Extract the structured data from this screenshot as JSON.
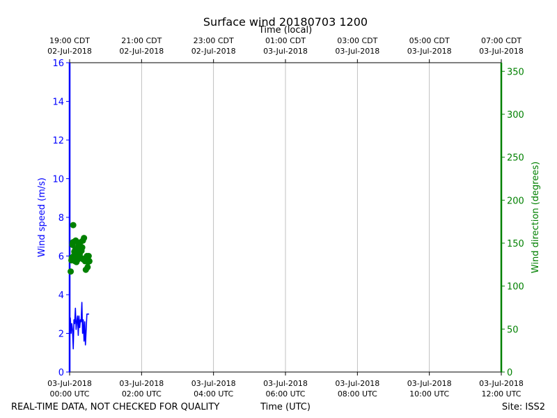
{
  "chart_data": {
    "type": "line",
    "title": "Surface wind 20180703 1200",
    "top_xlabel": "Time (local)",
    "xlabel": "Time (UTC)",
    "ylabel_left": "Wind speed (m/s)",
    "ylabel_right": "Wind direction (degrees)",
    "footer_left": "REAL-TIME DATA, NOT CHECKED FOR QUALITY",
    "footer_right": "Site: ISS2",
    "x_range_hours_utc": [
      0,
      12
    ],
    "ylim_left": [
      0,
      16
    ],
    "ylim_right": [
      0,
      360
    ],
    "grid_x": true,
    "left_ticks": [
      0,
      2,
      4,
      6,
      8,
      10,
      12,
      14,
      16
    ],
    "right_ticks": [
      0,
      50,
      100,
      150,
      200,
      250,
      300,
      350
    ],
    "bottom_ticks": [
      {
        "h": 0,
        "time": "00:00 UTC",
        "date": "03-Jul-2018"
      },
      {
        "h": 2,
        "time": "02:00 UTC",
        "date": "03-Jul-2018"
      },
      {
        "h": 4,
        "time": "04:00 UTC",
        "date": "03-Jul-2018"
      },
      {
        "h": 6,
        "time": "06:00 UTC",
        "date": "03-Jul-2018"
      },
      {
        "h": 8,
        "time": "08:00 UTC",
        "date": "03-Jul-2018"
      },
      {
        "h": 10,
        "time": "10:00 UTC",
        "date": "03-Jul-2018"
      },
      {
        "h": 12,
        "time": "12:00 UTC",
        "date": "03-Jul-2018"
      }
    ],
    "top_ticks": [
      {
        "h": 0,
        "time": "19:00 CDT",
        "date": "02-Jul-2018"
      },
      {
        "h": 2,
        "time": "21:00 CDT",
        "date": "02-Jul-2018"
      },
      {
        "h": 4,
        "time": "23:00 CDT",
        "date": "02-Jul-2018"
      },
      {
        "h": 6,
        "time": "01:00 CDT",
        "date": "03-Jul-2018"
      },
      {
        "h": 8,
        "time": "03:00 CDT",
        "date": "03-Jul-2018"
      },
      {
        "h": 10,
        "time": "05:00 CDT",
        "date": "03-Jul-2018"
      },
      {
        "h": 12,
        "time": "07:00 CDT",
        "date": "03-Jul-2018"
      }
    ],
    "series": [
      {
        "kind": "line",
        "axis": "left",
        "color": "#0000ff",
        "x": [
          0.0,
          0.02,
          0.04,
          0.06,
          0.08,
          0.1,
          0.12,
          0.14,
          0.16,
          0.18,
          0.2,
          0.22,
          0.24,
          0.26,
          0.28,
          0.3,
          0.32,
          0.34,
          0.36,
          0.38,
          0.4,
          0.42,
          0.44,
          0.46,
          0.48,
          0.5,
          0.52,
          0.54
        ],
        "y": [
          2.0,
          2.8,
          2.0,
          2.5,
          2.2,
          1.2,
          2.7,
          2.5,
          3.3,
          2.2,
          2.6,
          2.9,
          1.9,
          2.9,
          2.3,
          2.7,
          2.6,
          3.6,
          2.0,
          2.7,
          1.6,
          2.6,
          1.4,
          2.2,
          3.0,
          3.0,
          3.0,
          3.0
        ]
      },
      {
        "kind": "scatter",
        "axis": "right",
        "color": "#008000",
        "x": [
          0.03,
          0.05,
          0.06,
          0.08,
          0.09,
          0.1,
          0.11,
          0.12,
          0.13,
          0.14,
          0.15,
          0.16,
          0.17,
          0.18,
          0.19,
          0.2,
          0.21,
          0.22,
          0.23,
          0.25,
          0.26,
          0.28,
          0.3,
          0.31,
          0.33,
          0.35,
          0.37,
          0.38,
          0.4,
          0.42,
          0.43,
          0.45,
          0.46,
          0.48,
          0.5,
          0.51,
          0.53,
          0.55
        ],
        "y": [
          117,
          130,
          133,
          148,
          151,
          171,
          135,
          131,
          140,
          152,
          129,
          143,
          153,
          138,
          128,
          142,
          130,
          133,
          139,
          147,
          132,
          137,
          151,
          133,
          141,
          145,
          153,
          131,
          156,
          132,
          129,
          119,
          132,
          135,
          122,
          128,
          135,
          129
        ]
      }
    ]
  }
}
